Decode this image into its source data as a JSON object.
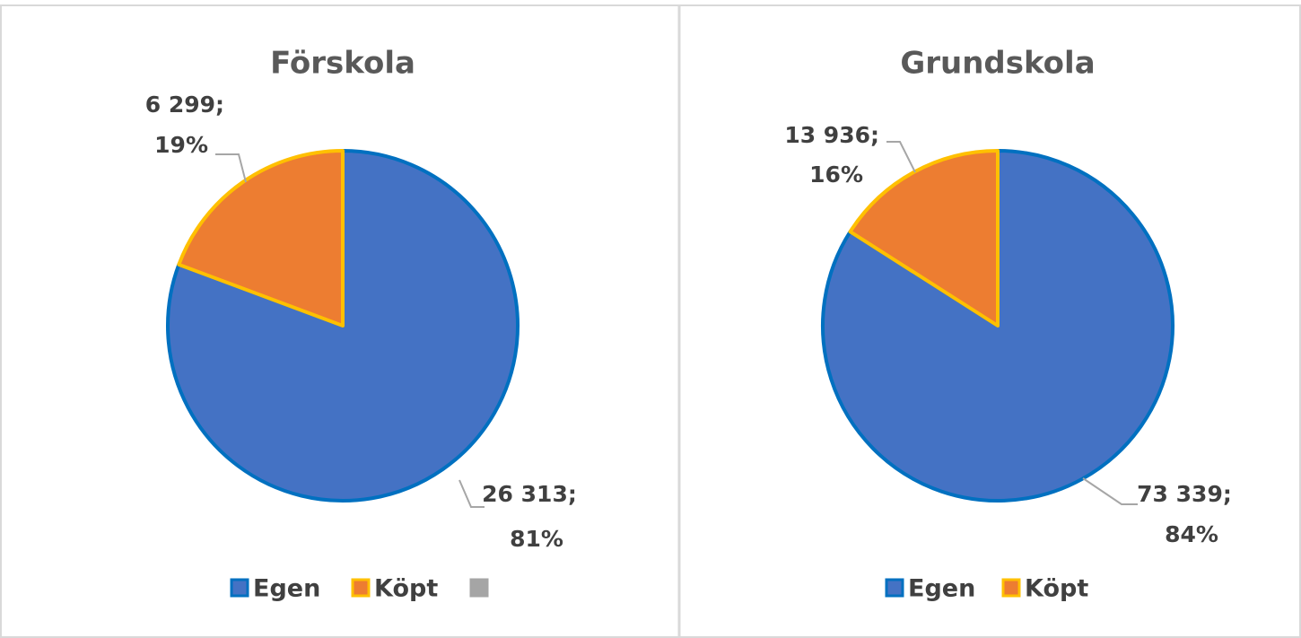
{
  "chart_data": [
    {
      "type": "pie",
      "title": "Förskola",
      "categories": [
        "Egen",
        "Köpt",
        null
      ],
      "values": [
        26313,
        6299,
        null
      ],
      "value_labels": [
        "26 313;",
        "6 299;",
        null
      ],
      "percent_labels": [
        "81%",
        "19%",
        null
      ],
      "colors": [
        "#4472c4",
        "#ed7d31",
        "#a5a5a5"
      ],
      "border_colors": [
        "#0070c0",
        "#ffc000",
        "#a5a5a5"
      ],
      "legend": "bottom"
    },
    {
      "type": "pie",
      "title": "Grundskola",
      "categories": [
        "Egen",
        "Köpt"
      ],
      "values": [
        73339,
        13936
      ],
      "value_labels": [
        "73 339;",
        "13 936;"
      ],
      "percent_labels": [
        "84%",
        "16%"
      ],
      "colors": [
        "#4472c4",
        "#ed7d31"
      ],
      "border_colors": [
        "#0070c0",
        "#ffc000"
      ],
      "legend": "bottom"
    }
  ]
}
